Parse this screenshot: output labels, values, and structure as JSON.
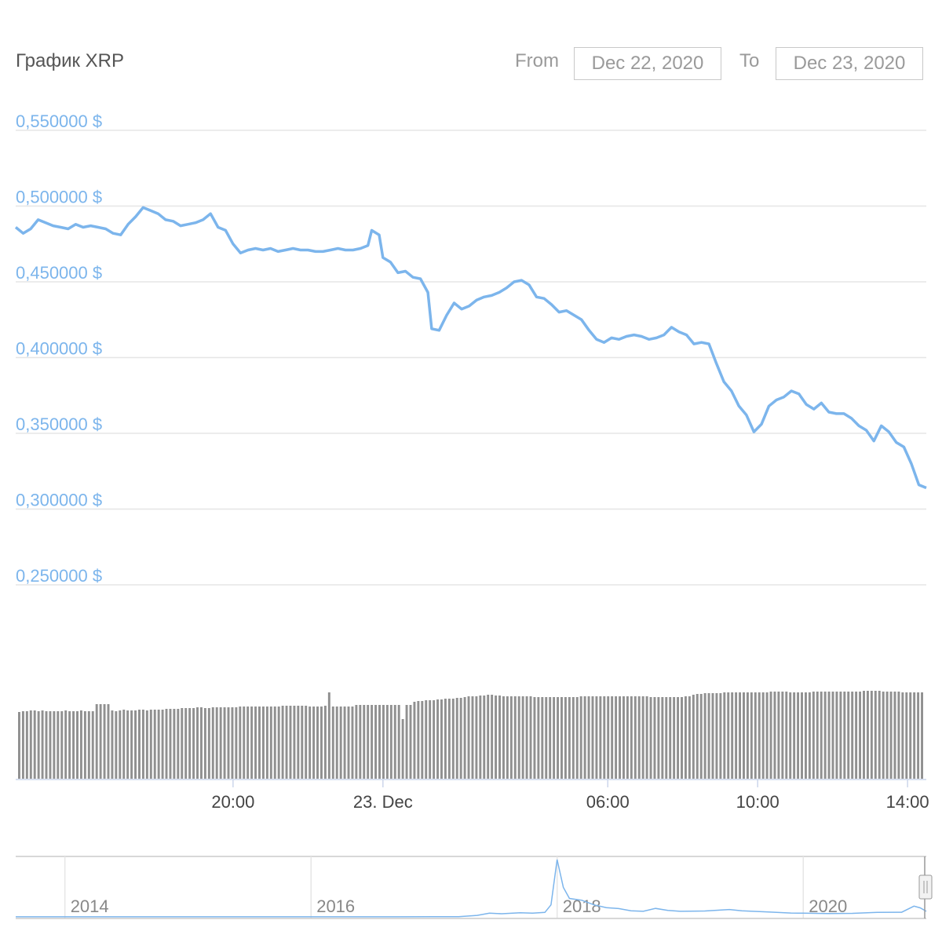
{
  "header": {
    "title": "График XRP",
    "from_label": "From",
    "from_value": "Dec 22, 2020",
    "to_label": "To",
    "to_value": "Dec 23, 2020"
  },
  "colors": {
    "line": "#7cb5ec",
    "grid": "#e6e6e6",
    "volume": "#909090",
    "axis": "#ccd6eb"
  },
  "chart_data": {
    "type": "line",
    "y_ticks": [
      "0,550000 $",
      "0,500000 $",
      "0,450000 $",
      "0,400000 $",
      "0,350000 $",
      "0,300000 $",
      "0,250000 $"
    ],
    "y_tick_values": [
      0.55,
      0.5,
      0.45,
      0.4,
      0.35,
      0.3,
      0.25
    ],
    "ylim": [
      0.25,
      0.55
    ],
    "x_ticks": [
      "20:00",
      "23. Dec",
      "06:00",
      "10:00",
      "14:00"
    ],
    "x_tick_hours": [
      20,
      24,
      30,
      34,
      38
    ],
    "xlim_hours": [
      14.2,
      38.5
    ],
    "x_unit": "hours from Dec 22, 2020 00:00",
    "series": [
      {
        "values": [
          [
            14.2,
            0.486
          ],
          [
            14.4,
            0.482
          ],
          [
            14.6,
            0.485
          ],
          [
            14.8,
            0.491
          ],
          [
            15.0,
            0.489
          ],
          [
            15.2,
            0.487
          ],
          [
            15.4,
            0.486
          ],
          [
            15.6,
            0.485
          ],
          [
            15.8,
            0.488
          ],
          [
            16.0,
            0.486
          ],
          [
            16.2,
            0.487
          ],
          [
            16.4,
            0.486
          ],
          [
            16.6,
            0.485
          ],
          [
            16.8,
            0.482
          ],
          [
            17.0,
            0.481
          ],
          [
            17.2,
            0.488
          ],
          [
            17.4,
            0.493
          ],
          [
            17.6,
            0.499
          ],
          [
            17.8,
            0.497
          ],
          [
            18.0,
            0.495
          ],
          [
            18.2,
            0.491
          ],
          [
            18.4,
            0.49
          ],
          [
            18.6,
            0.487
          ],
          [
            18.8,
            0.488
          ],
          [
            19.0,
            0.489
          ],
          [
            19.2,
            0.491
          ],
          [
            19.4,
            0.495
          ],
          [
            19.6,
            0.486
          ],
          [
            19.8,
            0.484
          ],
          [
            20.0,
            0.475
          ],
          [
            20.2,
            0.469
          ],
          [
            20.4,
            0.471
          ],
          [
            20.6,
            0.472
          ],
          [
            20.8,
            0.471
          ],
          [
            21.0,
            0.472
          ],
          [
            21.2,
            0.47
          ],
          [
            21.4,
            0.471
          ],
          [
            21.6,
            0.472
          ],
          [
            21.8,
            0.471
          ],
          [
            22.0,
            0.471
          ],
          [
            22.2,
            0.47
          ],
          [
            22.4,
            0.47
          ],
          [
            22.6,
            0.471
          ],
          [
            22.8,
            0.472
          ],
          [
            23.0,
            0.471
          ],
          [
            23.2,
            0.471
          ],
          [
            23.4,
            0.472
          ],
          [
            23.6,
            0.474
          ],
          [
            23.7,
            0.484
          ],
          [
            23.9,
            0.481
          ],
          [
            24.0,
            0.466
          ],
          [
            24.2,
            0.463
          ],
          [
            24.4,
            0.456
          ],
          [
            24.6,
            0.457
          ],
          [
            24.8,
            0.453
          ],
          [
            25.0,
            0.452
          ],
          [
            25.2,
            0.443
          ],
          [
            25.3,
            0.419
          ],
          [
            25.5,
            0.418
          ],
          [
            25.7,
            0.428
          ],
          [
            25.9,
            0.436
          ],
          [
            26.1,
            0.432
          ],
          [
            26.3,
            0.434
          ],
          [
            26.5,
            0.438
          ],
          [
            26.7,
            0.44
          ],
          [
            26.9,
            0.441
          ],
          [
            27.1,
            0.443
          ],
          [
            27.3,
            0.446
          ],
          [
            27.5,
            0.45
          ],
          [
            27.7,
            0.451
          ],
          [
            27.9,
            0.448
          ],
          [
            28.1,
            0.44
          ],
          [
            28.3,
            0.439
          ],
          [
            28.5,
            0.435
          ],
          [
            28.7,
            0.43
          ],
          [
            28.9,
            0.431
          ],
          [
            29.1,
            0.428
          ],
          [
            29.3,
            0.425
          ],
          [
            29.5,
            0.418
          ],
          [
            29.7,
            0.412
          ],
          [
            29.9,
            0.41
          ],
          [
            30.1,
            0.413
          ],
          [
            30.3,
            0.412
          ],
          [
            30.5,
            0.414
          ],
          [
            30.7,
            0.415
          ],
          [
            30.9,
            0.414
          ],
          [
            31.1,
            0.412
          ],
          [
            31.3,
            0.413
          ],
          [
            31.5,
            0.415
          ],
          [
            31.7,
            0.42
          ],
          [
            31.9,
            0.417
          ],
          [
            32.1,
            0.415
          ],
          [
            32.3,
            0.409
          ],
          [
            32.5,
            0.41
          ],
          [
            32.7,
            0.409
          ],
          [
            32.9,
            0.396
          ],
          [
            33.1,
            0.384
          ],
          [
            33.3,
            0.378
          ],
          [
            33.5,
            0.368
          ],
          [
            33.7,
            0.362
          ],
          [
            33.9,
            0.351
          ],
          [
            34.1,
            0.356
          ],
          [
            34.3,
            0.368
          ],
          [
            34.5,
            0.372
          ],
          [
            34.7,
            0.374
          ],
          [
            34.9,
            0.378
          ],
          [
            35.1,
            0.376
          ],
          [
            35.3,
            0.369
          ],
          [
            35.5,
            0.366
          ],
          [
            35.7,
            0.37
          ],
          [
            35.9,
            0.364
          ],
          [
            36.1,
            0.363
          ],
          [
            36.3,
            0.363
          ],
          [
            36.5,
            0.36
          ],
          [
            36.7,
            0.355
          ],
          [
            36.9,
            0.352
          ],
          [
            37.1,
            0.345
          ],
          [
            37.3,
            0.355
          ],
          [
            37.5,
            0.351
          ],
          [
            37.7,
            0.344
          ],
          [
            37.9,
            0.341
          ],
          [
            38.1,
            0.33
          ],
          [
            38.3,
            0.316
          ],
          [
            38.5,
            0.314
          ]
        ]
      }
    ],
    "volume_relative": [
      0.85,
      0.86,
      0.86,
      0.87,
      0.87,
      0.86,
      0.87,
      0.86,
      0.86,
      0.86,
      0.86,
      0.86,
      0.87,
      0.86,
      0.86,
      0.86,
      0.87,
      0.86,
      0.86,
      0.86,
      0.95,
      0.95,
      0.95,
      0.95,
      0.87,
      0.86,
      0.87,
      0.88,
      0.87,
      0.87,
      0.87,
      0.88,
      0.88,
      0.87,
      0.88,
      0.88,
      0.88,
      0.88,
      0.89,
      0.89,
      0.89,
      0.89,
      0.9,
      0.9,
      0.9,
      0.9,
      0.91,
      0.91,
      0.9,
      0.9,
      0.91,
      0.91,
      0.91,
      0.91,
      0.91,
      0.91,
      0.91,
      0.92,
      0.92,
      0.92,
      0.92,
      0.92,
      0.92,
      0.92,
      0.92,
      0.92,
      0.92,
      0.92,
      0.93,
      0.93,
      0.93,
      0.93,
      0.93,
      0.93,
      0.93,
      0.92,
      0.92,
      0.92,
      0.92,
      0.93,
      1.1,
      0.92,
      0.92,
      0.92,
      0.92,
      0.92,
      0.92,
      0.94,
      0.94,
      0.94,
      0.94,
      0.94,
      0.94,
      0.94,
      0.94,
      0.94,
      0.94,
      0.94,
      0.94,
      0.76,
      0.94,
      0.94,
      0.98,
      0.99,
      0.99,
      1.0,
      1.0,
      1.0,
      1.01,
      1.01,
      1.02,
      1.02,
      1.02,
      1.03,
      1.03,
      1.04,
      1.05,
      1.05,
      1.05,
      1.06,
      1.06,
      1.07,
      1.07,
      1.06,
      1.06,
      1.05,
      1.05,
      1.05,
      1.05,
      1.05,
      1.05,
      1.05,
      1.05,
      1.04,
      1.04,
      1.04,
      1.04,
      1.04,
      1.04,
      1.04,
      1.04,
      1.04,
      1.04,
      1.04,
      1.04,
      1.05,
      1.05,
      1.05,
      1.05,
      1.05,
      1.05,
      1.05,
      1.05,
      1.05,
      1.05,
      1.05,
      1.05,
      1.05,
      1.05,
      1.05,
      1.05,
      1.05,
      1.05,
      1.04,
      1.04,
      1.04,
      1.04,
      1.04,
      1.04,
      1.04,
      1.04,
      1.04,
      1.05,
      1.05,
      1.07,
      1.08,
      1.08,
      1.09,
      1.09,
      1.09,
      1.09,
      1.09,
      1.1,
      1.1,
      1.1,
      1.1,
      1.1,
      1.1,
      1.1,
      1.1,
      1.1,
      1.1,
      1.1,
      1.1,
      1.11,
      1.11,
      1.11,
      1.11,
      1.11,
      1.1,
      1.1,
      1.1,
      1.1,
      1.1,
      1.1,
      1.11,
      1.11,
      1.11,
      1.11,
      1.11,
      1.11,
      1.11,
      1.11,
      1.11,
      1.11,
      1.11,
      1.11,
      1.11,
      1.12,
      1.12,
      1.12,
      1.12,
      1.12,
      1.11,
      1.11,
      1.11,
      1.11,
      1.11,
      1.1,
      1.1,
      1.1,
      1.1,
      1.1,
      1.1
    ],
    "navigator": {
      "x_ticks": [
        "2014",
        "2016",
        "2018",
        "2020"
      ],
      "x_tick_years": [
        2014,
        2016,
        2018,
        2020
      ],
      "xlim_years": [
        2013.6,
        2021.0
      ],
      "values": [
        [
          2013.6,
          0.005
        ],
        [
          2014.0,
          0.006
        ],
        [
          2014.5,
          0.005
        ],
        [
          2015.0,
          0.004
        ],
        [
          2015.5,
          0.006
        ],
        [
          2016.0,
          0.006
        ],
        [
          2016.5,
          0.006
        ],
        [
          2017.0,
          0.007
        ],
        [
          2017.2,
          0.01
        ],
        [
          2017.35,
          0.08
        ],
        [
          2017.45,
          0.2
        ],
        [
          2017.55,
          0.17
        ],
        [
          2017.7,
          0.22
        ],
        [
          2017.8,
          0.2
        ],
        [
          2017.9,
          0.24
        ],
        [
          2017.95,
          0.65
        ],
        [
          2018.0,
          3.1
        ],
        [
          2018.05,
          1.6
        ],
        [
          2018.1,
          1.0
        ],
        [
          2018.2,
          0.9
        ],
        [
          2018.3,
          0.65
        ],
        [
          2018.4,
          0.5
        ],
        [
          2018.5,
          0.45
        ],
        [
          2018.6,
          0.33
        ],
        [
          2018.7,
          0.3
        ],
        [
          2018.8,
          0.46
        ],
        [
          2018.9,
          0.35
        ],
        [
          2019.0,
          0.3
        ],
        [
          2019.2,
          0.32
        ],
        [
          2019.4,
          0.4
        ],
        [
          2019.5,
          0.33
        ],
        [
          2019.7,
          0.27
        ],
        [
          2019.9,
          0.21
        ],
        [
          2020.0,
          0.2
        ],
        [
          2020.2,
          0.18
        ],
        [
          2020.4,
          0.19
        ],
        [
          2020.6,
          0.24
        ],
        [
          2020.8,
          0.25
        ],
        [
          2020.9,
          0.58
        ],
        [
          2020.95,
          0.49
        ],
        [
          2021.0,
          0.3
        ]
      ]
    }
  }
}
